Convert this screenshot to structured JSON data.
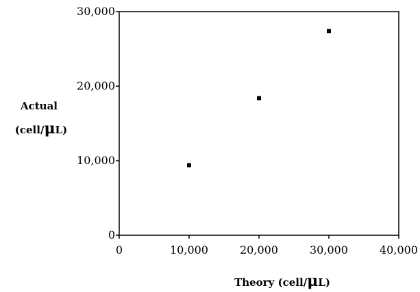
{
  "chart_data": {
    "type": "scatter",
    "title": "",
    "xlabel": "Theory (cell/μL)",
    "xlabel_parts": {
      "prefix": "Theory (cell/",
      "mu": "μ",
      "suffix": "L)"
    },
    "ylabel": "Actual (cell/μL)",
    "ylabel_parts": {
      "line1": "Actual",
      "prefix": "(cell/",
      "mu": "μ",
      "suffix": "L)"
    },
    "xlim": [
      0,
      40000
    ],
    "ylim": [
      0,
      30000
    ],
    "xticks": [
      0,
      10000,
      20000,
      30000,
      40000
    ],
    "xtick_labels": [
      "0",
      "10,000",
      "20,000",
      "30,000",
      "40,000"
    ],
    "yticks": [
      0,
      10000,
      20000,
      30000
    ],
    "ytick_labels": [
      "0",
      "10,000",
      "20,000",
      "30,000"
    ],
    "grid": false,
    "legend": "none",
    "marker": "square",
    "color": "#000000",
    "points": [
      {
        "x": 10000,
        "y": 9400
      },
      {
        "x": 20000,
        "y": 18400
      },
      {
        "x": 30000,
        "y": 27400
      }
    ]
  }
}
